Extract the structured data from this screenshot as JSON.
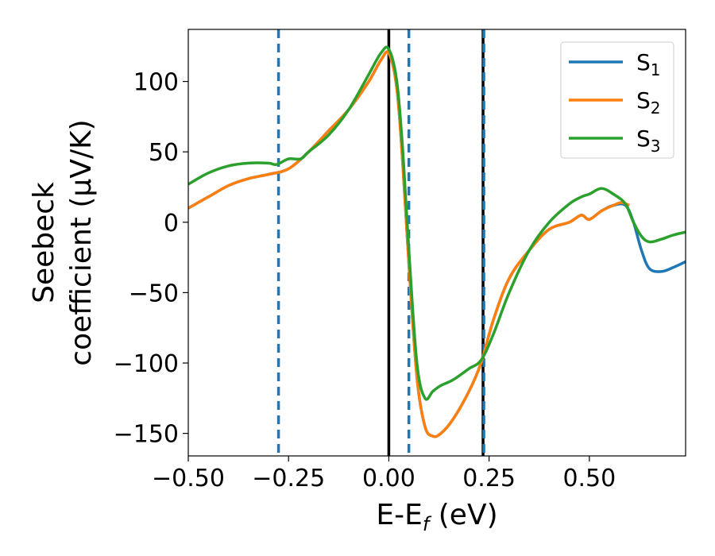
{
  "chart_data": {
    "type": "line",
    "xlabel": "E-E",
    "xlabel_sub": "f",
    "xlabel_unit": " (eV)",
    "ylabel_line1": "Seebeck",
    "ylabel_line2": "coefficient  (μV/K)",
    "xlim": [
      -0.5,
      0.74
    ],
    "ylim": [
      -166,
      137
    ],
    "xticks": [
      -0.5,
      -0.25,
      0.0,
      0.25,
      0.5
    ],
    "xtick_labels": [
      "−0.50",
      "−0.25",
      "0.00",
      "0.25",
      "0.50"
    ],
    "yticks": [
      -150,
      -100,
      -50,
      0,
      50,
      100
    ],
    "ytick_labels": [
      "−150",
      "−100",
      "−50",
      "0",
      "50",
      "100"
    ],
    "grid": false,
    "legend_position": "top-right",
    "vlines_solid": [
      0.0,
      0.235
    ],
    "vlines_dashed": [
      -0.275,
      0.05,
      0.237
    ],
    "vline_solid_color": "#000000",
    "vline_dashed_color": "#1f77b4",
    "series": [
      {
        "name": "S",
        "sub": "1",
        "color": "#1f77b4",
        "x": [
          -0.5,
          -0.45,
          -0.4,
          -0.35,
          -0.3,
          -0.25,
          -0.2,
          -0.15,
          -0.1,
          -0.05,
          -0.02,
          0.0,
          0.02,
          0.035,
          0.05,
          0.07,
          0.09,
          0.11,
          0.13,
          0.16,
          0.2,
          0.23,
          0.26,
          0.3,
          0.35,
          0.4,
          0.45,
          0.48,
          0.5,
          0.53,
          0.56,
          0.59,
          0.61,
          0.63,
          0.65,
          0.68,
          0.71,
          0.74
        ],
        "y": [
          10,
          18,
          26,
          31,
          34,
          38,
          50,
          65,
          80,
          100,
          115,
          120,
          95,
          40,
          -30,
          -110,
          -145,
          -152,
          -150,
          -140,
          -120,
          -100,
          -70,
          -40,
          -20,
          -5,
          0,
          5,
          2,
          8,
          12,
          12,
          0,
          -20,
          -33,
          -35,
          -32,
          -28
        ]
      },
      {
        "name": "S",
        "sub": "2",
        "color": "#ff7f0e",
        "x": [
          -0.5,
          -0.45,
          -0.4,
          -0.35,
          -0.3,
          -0.25,
          -0.2,
          -0.15,
          -0.1,
          -0.05,
          -0.02,
          0.0,
          0.02,
          0.035,
          0.05,
          0.07,
          0.09,
          0.11,
          0.13,
          0.16,
          0.2,
          0.23,
          0.26,
          0.3,
          0.35,
          0.4,
          0.45,
          0.48,
          0.5,
          0.53,
          0.56,
          0.58,
          0.6
        ],
        "y": [
          10,
          18,
          26,
          31,
          34,
          38,
          50,
          65,
          80,
          100,
          115,
          120,
          95,
          40,
          -30,
          -110,
          -145,
          -152,
          -150,
          -140,
          -120,
          -100,
          -70,
          -40,
          -20,
          -5,
          0,
          5,
          2,
          8,
          12,
          14,
          12
        ]
      },
      {
        "name": "S",
        "sub": "3",
        "color": "#2ca02c",
        "x": [
          -0.5,
          -0.45,
          -0.4,
          -0.35,
          -0.3,
          -0.28,
          -0.25,
          -0.22,
          -0.2,
          -0.15,
          -0.1,
          -0.05,
          -0.02,
          0.0,
          0.02,
          0.035,
          0.05,
          0.07,
          0.09,
          0.11,
          0.13,
          0.16,
          0.2,
          0.23,
          0.26,
          0.3,
          0.35,
          0.4,
          0.45,
          0.48,
          0.5,
          0.53,
          0.56,
          0.59,
          0.61,
          0.63,
          0.65,
          0.68,
          0.71,
          0.74
        ],
        "y": [
          27,
          35,
          40,
          42,
          42,
          41,
          45,
          45,
          50,
          62,
          80,
          105,
          120,
          123,
          100,
          50,
          -20,
          -100,
          -125,
          -120,
          -116,
          -112,
          -104,
          -98,
          -80,
          -50,
          -20,
          0,
          13,
          18,
          20,
          24,
          20,
          13,
          0,
          -10,
          -14,
          -12,
          -9,
          -7
        ]
      }
    ]
  }
}
